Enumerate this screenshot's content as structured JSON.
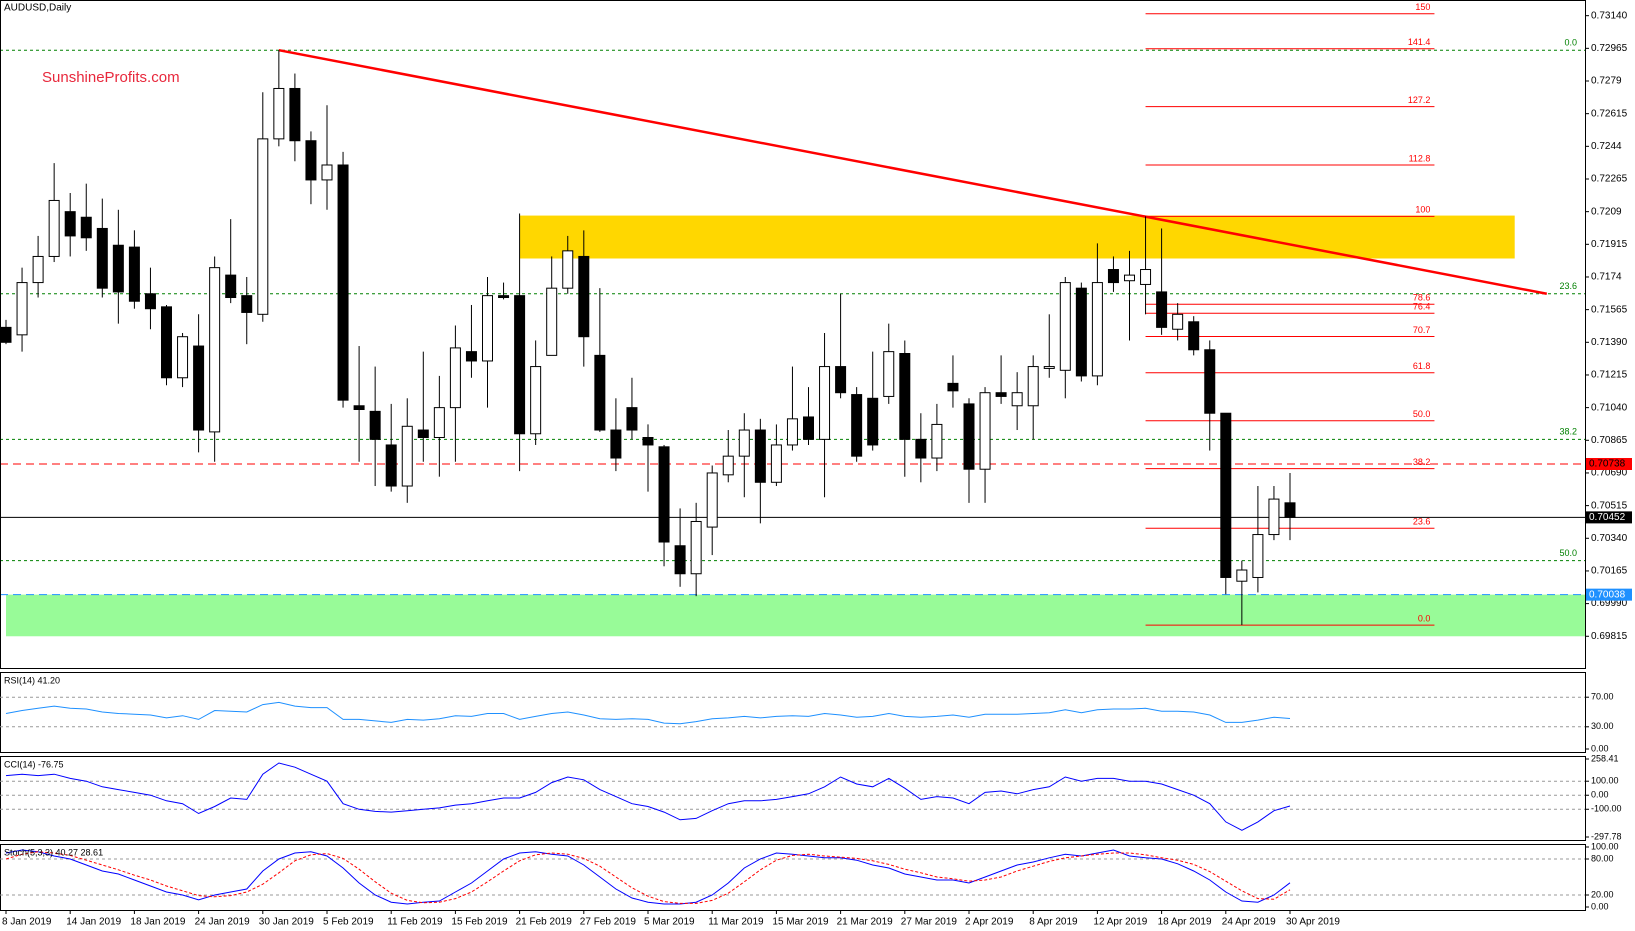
{
  "chart_data": {
    "type": "candlestick",
    "title": "AUDUSD,Daily",
    "watermark": "SunshineProfits.com",
    "up_color": "#ffffff",
    "down_color": "#000000",
    "candles": {
      "open": [
        0.7147,
        0.7143,
        0.7171,
        0.7185,
        0.7209,
        0.7206,
        0.72,
        0.7191,
        0.719,
        0.7165,
        0.7158,
        0.712,
        0.7137,
        0.7091,
        0.7175,
        0.7164,
        0.7154,
        0.7248,
        0.7275,
        0.7247,
        0.7226,
        0.7234,
        0.7105,
        0.7102,
        0.7084,
        0.7062,
        0.7092,
        0.7088,
        0.7104,
        0.7134,
        0.7129,
        0.7164,
        0.7164,
        0.709,
        0.7132,
        0.7168,
        0.7185,
        0.7132,
        0.7092,
        0.7104,
        0.7088,
        0.7083,
        0.703,
        0.7015,
        0.704,
        0.7068,
        0.7078,
        0.7092,
        0.7064,
        0.7084,
        0.7099,
        0.7087,
        0.7126,
        0.7111,
        0.7109,
        0.711,
        0.7133,
        0.7087,
        0.7077,
        0.7117,
        0.7106,
        0.7071,
        0.7112,
        0.7105,
        0.7105,
        0.7125,
        0.7124,
        0.7168,
        0.7121,
        0.7178,
        0.7172,
        0.717,
        0.7166,
        0.7146,
        0.715,
        0.7135,
        0.7101,
        0.7011,
        0.7013,
        0.7036,
        0.7053
      ],
      "high": [
        0.7151,
        0.7179,
        0.7196,
        0.7235,
        0.7219,
        0.7224,
        0.7216,
        0.721,
        0.7199,
        0.7179,
        0.7159,
        0.7144,
        0.7154,
        0.7185,
        0.7205,
        0.7174,
        0.7273,
        0.72955,
        0.7283,
        0.7252,
        0.7266,
        0.7241,
        0.7137,
        0.7126,
        0.7106,
        0.7109,
        0.7134,
        0.7121,
        0.7148,
        0.7159,
        0.7174,
        0.7171,
        0.7208,
        0.714,
        0.7185,
        0.7196,
        0.7199,
        0.7168,
        0.7109,
        0.712,
        0.7095,
        0.7084,
        0.705,
        0.7053,
        0.7073,
        0.7092,
        0.7101,
        0.7098,
        0.7095,
        0.7126,
        0.7115,
        0.7144,
        0.7165,
        0.7115,
        0.7134,
        0.7149,
        0.714,
        0.7101,
        0.7106,
        0.7132,
        0.7109,
        0.7115,
        0.7132,
        0.7123,
        0.7132,
        0.7154,
        0.7174,
        0.7171,
        0.7192,
        0.7185,
        0.7188,
        0.72065,
        0.72,
        0.716,
        0.7153,
        0.714,
        0.7101,
        0.7022,
        0.7062,
        0.7062,
        0.7069
      ],
      "low": [
        0.7138,
        0.7134,
        0.7163,
        0.7182,
        0.7185,
        0.7188,
        0.7163,
        0.7149,
        0.7157,
        0.7146,
        0.7116,
        0.7115,
        0.708,
        0.7075,
        0.716,
        0.7138,
        0.715,
        0.7244,
        0.7236,
        0.7213,
        0.721,
        0.7104,
        0.7075,
        0.7062,
        0.7059,
        0.7053,
        0.7075,
        0.7067,
        0.7075,
        0.712,
        0.7104,
        0.7162,
        0.707,
        0.7084,
        0.7132,
        0.7165,
        0.7126,
        0.7091,
        0.707,
        0.7087,
        0.7059,
        0.7019,
        0.7008,
        0.7003,
        0.7025,
        0.7064,
        0.7056,
        0.7042,
        0.7062,
        0.7081,
        0.7084,
        0.7056,
        0.7109,
        0.7075,
        0.7081,
        0.7106,
        0.7067,
        0.7064,
        0.707,
        0.7104,
        0.7053,
        0.7053,
        0.7106,
        0.7092,
        0.7087,
        0.712,
        0.7109,
        0.7118,
        0.7116,
        0.7166,
        0.714,
        0.7154,
        0.7143,
        0.714,
        0.7132,
        0.7081,
        0.7004,
        0.69875,
        0.7005,
        0.7033,
        0.7033
      ],
      "close": [
        0.7139,
        0.7171,
        0.7185,
        0.7215,
        0.7196,
        0.7195,
        0.7168,
        0.7166,
        0.7161,
        0.7157,
        0.712,
        0.7142,
        0.7092,
        0.7179,
        0.7163,
        0.7155,
        0.7248,
        0.7275,
        0.7247,
        0.7226,
        0.7234,
        0.7108,
        0.7103,
        0.7087,
        0.7062,
        0.7094,
        0.7088,
        0.7104,
        0.7136,
        0.7129,
        0.7164,
        0.7163,
        0.709,
        0.7126,
        0.7168,
        0.7188,
        0.7142,
        0.7092,
        0.7077,
        0.7092,
        0.7084,
        0.7032,
        0.7015,
        0.7043,
        0.7069,
        0.7078,
        0.7092,
        0.7064,
        0.7084,
        0.7098,
        0.7087,
        0.7126,
        0.7112,
        0.7078,
        0.7084,
        0.7134,
        0.7087,
        0.7077,
        0.7095,
        0.7113,
        0.7071,
        0.7112,
        0.711,
        0.7112,
        0.7126,
        0.7126,
        0.7171,
        0.7121,
        0.7171,
        0.7171,
        0.7175,
        0.7178,
        0.7147,
        0.7154,
        0.7135,
        0.7101,
        0.7013,
        0.7017,
        0.7036,
        0.7055,
        0.70452
      ]
    },
    "xticks": [
      {
        "value": 0,
        "label": "8 Jan 2019"
      },
      {
        "value": 4,
        "label": "14 Jan 2019"
      },
      {
        "value": 8,
        "label": "18 Jan 2019"
      },
      {
        "value": 12,
        "label": "24 Jan 2019"
      },
      {
        "value": 16,
        "label": "30 Jan 2019"
      },
      {
        "value": 20,
        "label": "5 Feb 2019"
      },
      {
        "value": 24,
        "label": "11 Feb 2019"
      },
      {
        "value": 28,
        "label": "15 Feb 2019"
      },
      {
        "value": 32,
        "label": "21 Feb 2019"
      },
      {
        "value": 36,
        "label": "27 Feb 2019"
      },
      {
        "value": 40,
        "label": "5 Mar 2019"
      },
      {
        "value": 44,
        "label": "11 Mar 2019"
      },
      {
        "value": 48,
        "label": "15 Mar 2019"
      },
      {
        "value": 52,
        "label": "21 Mar 2019"
      },
      {
        "value": 56,
        "label": "27 Mar 2019"
      },
      {
        "value": 60,
        "label": "2 Apr 2019"
      },
      {
        "value": 64,
        "label": "8 Apr 2019"
      },
      {
        "value": 68,
        "label": "12 Apr 2019"
      },
      {
        "value": 72,
        "label": "18 Apr 2019"
      },
      {
        "value": 76,
        "label": "24 Apr 2019"
      },
      {
        "value": 80,
        "label": "30 Apr 2019"
      }
    ],
    "ylim": [
      0.69645,
      0.73224
    ],
    "yticks": [
      {
        "value": 0.7314,
        "label": "0.73140"
      },
      0.72965,
      0.7279,
      0.72615,
      0.7244,
      0.72265,
      0.7209,
      0.71915,
      0.7174,
      0.71565,
      {
        "value": 0.7139,
        "label": "0.71390"
      },
      0.71215,
      {
        "value": 0.7104,
        "label": "0.71040"
      },
      0.70865,
      {
        "value": 0.7069,
        "label": "0.70690"
      },
      0.70515,
      {
        "value": 0.7034,
        "label": "0.70340"
      },
      0.70165,
      {
        "value": 0.6999,
        "label": "0.69990"
      },
      0.69815
    ],
    "zones": [
      {
        "color": "#ffd700",
        "from": 32,
        "to": 94,
        "ylim": [
          0.71839,
          0.72069
        ]
      },
      {
        "color": "#98fb98",
        "from": 0,
        "to": 104,
        "ylim": [
          0.69815,
          0.70038
        ]
      }
    ],
    "trendline": {
      "color": "#ff0000",
      "start": {
        "index": 17,
        "price": 0.72955
      },
      "end": {
        "index": 96,
        "price": 0.7165
      }
    },
    "hlines": [
      {
        "value": 0.70738,
        "color": "#ff0000",
        "dashed": true
      },
      {
        "value": 0.70452,
        "color": "#000000",
        "dashed": false
      },
      {
        "value": 0.70038,
        "color": "#1e90ff",
        "dashed": true
      }
    ],
    "fib_red": {
      "color": "#ff0000",
      "from": 71,
      "to": 89,
      "levels": [
        {
          "value": 0.7315,
          "label": "150"
        },
        {
          "value": 0.72963,
          "label": "141.4"
        },
        {
          "value": 0.72653,
          "label": "127.2"
        },
        {
          "value": 0.7234,
          "label": "112.8"
        },
        {
          "value": 0.72065,
          "label": "100"
        },
        {
          "value": 0.71594,
          "label": "78.6"
        },
        {
          "value": 0.71546,
          "label": "76.4"
        },
        {
          "value": 0.71421,
          "label": "70.7"
        },
        {
          "value": 0.71227,
          "label": "61.8"
        },
        {
          "value": 0.7097,
          "label": "50.0"
        },
        {
          "value": 0.70713,
          "label": "38.2"
        },
        {
          "value": 0.70394,
          "label": "23.6"
        },
        {
          "value": 0.69875,
          "label": "0.0"
        }
      ]
    },
    "fib_green": {
      "color": "#008000",
      "levels": [
        {
          "value": 0.72955,
          "label": "0.0"
        },
        {
          "value": 0.7165,
          "label": "23.6"
        },
        {
          "value": 0.7087,
          "label": "38.2"
        },
        {
          "value": 0.7022,
          "label": "50.0"
        }
      ]
    },
    "indicators": [
      {
        "type": "line",
        "title": "RSI(14) 41.20",
        "ylim": [
          0,
          100
        ],
        "yticks": [
          {
            "value": 70,
            "label": "70.00"
          },
          {
            "value": 30,
            "label": "30.00"
          },
          {
            "value": 0,
            "label": "0.00"
          }
        ],
        "series": [
          {
            "color": "#1e90ff",
            "dashed": false,
            "values": [
              48,
              52,
              55,
              58,
              55,
              54,
              50,
              48,
              47,
              46,
              42,
              45,
              40,
              52,
              51,
              50,
              60,
              63,
              58,
              56,
              56,
              40,
              40,
              38,
              36,
              40,
              39,
              41,
              45,
              44,
              48,
              48,
              40,
              44,
              48,
              50,
              46,
              41,
              40,
              41,
              40,
              35,
              34,
              37,
              41,
              42,
              44,
              42,
              44,
              45,
              44,
              48,
              46,
              43,
              44,
              48,
              44,
              43,
              44,
              46,
              43,
              47,
              47,
              47,
              48,
              49,
              53,
              49,
              53,
              54,
              54,
              55,
              51,
              51,
              50,
              46,
              36,
              36,
              39,
              43,
              41.2
            ]
          }
        ]
      },
      {
        "type": "line",
        "title": "CCI(14) -76.75",
        "ylim": [
          -297.78,
          258.41
        ],
        "yticks": [
          258.41,
          {
            "value": 100,
            "label": "100.00"
          },
          {
            "value": 0,
            "label": "0.00"
          },
          {
            "value": -100,
            "label": "-100.00"
          },
          -297.78
        ],
        "series": [
          {
            "color": "#0000ff",
            "dashed": false,
            "values": [
              140,
              150,
              140,
              150,
              120,
              100,
              60,
              40,
              20,
              0,
              -40,
              -60,
              -130,
              -80,
              -20,
              -30,
              150,
              230,
              200,
              150,
              100,
              -60,
              -100,
              -115,
              -120,
              -110,
              -100,
              -90,
              -70,
              -60,
              -40,
              -20,
              -20,
              20,
              90,
              130,
              110,
              40,
              -10,
              -60,
              -80,
              -120,
              -175,
              -165,
              -110,
              -60,
              -40,
              -40,
              -30,
              -10,
              10,
              60,
              130,
              80,
              60,
              120,
              50,
              -30,
              -10,
              -20,
              -60,
              20,
              30,
              10,
              40,
              60,
              130,
              100,
              120,
              120,
              100,
              100,
              80,
              40,
              0,
              -60,
              -190,
              -250,
              -190,
              -110,
              -76.75
            ]
          }
        ]
      },
      {
        "type": "line",
        "title": "Stoch(5,3,3) 40.27 28.61",
        "ylim": [
          0,
          100
        ],
        "yticks": [
          {
            "value": 100,
            "label": "100.00"
          },
          {
            "value": 80,
            "label": "80.00"
          },
          {
            "value": 20,
            "label": "20.00"
          },
          {
            "value": 0,
            "label": "0.00"
          }
        ],
        "series": [
          {
            "color": "#0000ff",
            "dashed": false,
            "values": [
              90,
              95,
              92,
              85,
              80,
              70,
              60,
              55,
              45,
              35,
              25,
              20,
              12,
              20,
              25,
              30,
              60,
              80,
              90,
              92,
              85,
              65,
              40,
              20,
              8,
              5,
              8,
              10,
              25,
              40,
              60,
              80,
              90,
              92,
              88,
              85,
              70,
              50,
              30,
              15,
              8,
              5,
              5,
              8,
              20,
              40,
              65,
              80,
              90,
              88,
              85,
              82,
              82,
              78,
              70,
              65,
              55,
              50,
              45,
              45,
              40,
              50,
              60,
              70,
              75,
              82,
              88,
              85,
              90,
              95,
              85,
              82,
              80,
              72,
              60,
              45,
              25,
              10,
              8,
              20,
              40.27
            ]
          },
          {
            "color": "#ff0000",
            "dashed": true,
            "values": [
              80,
              88,
              92,
              90,
              86,
              78,
              70,
              62,
              53,
              45,
              35,
              27,
              19,
              17,
              19,
              25,
              38,
              57,
              77,
              87,
              89,
              81,
              63,
              42,
              23,
              11,
              7,
              8,
              14,
              25,
              42,
              60,
              77,
              87,
              90,
              88,
              81,
              68,
              50,
              32,
              18,
              9,
              6,
              6,
              11,
              23,
              42,
              62,
              78,
              86,
              88,
              85,
              83,
              81,
              77,
              71,
              63,
              57,
              50,
              47,
              43,
              45,
              50,
              60,
              68,
              76,
              82,
              85,
              88,
              90,
              90,
              87,
              82,
              78,
              71,
              59,
              43,
              27,
              14,
              13,
              28.61
            ]
          }
        ]
      }
    ]
  }
}
